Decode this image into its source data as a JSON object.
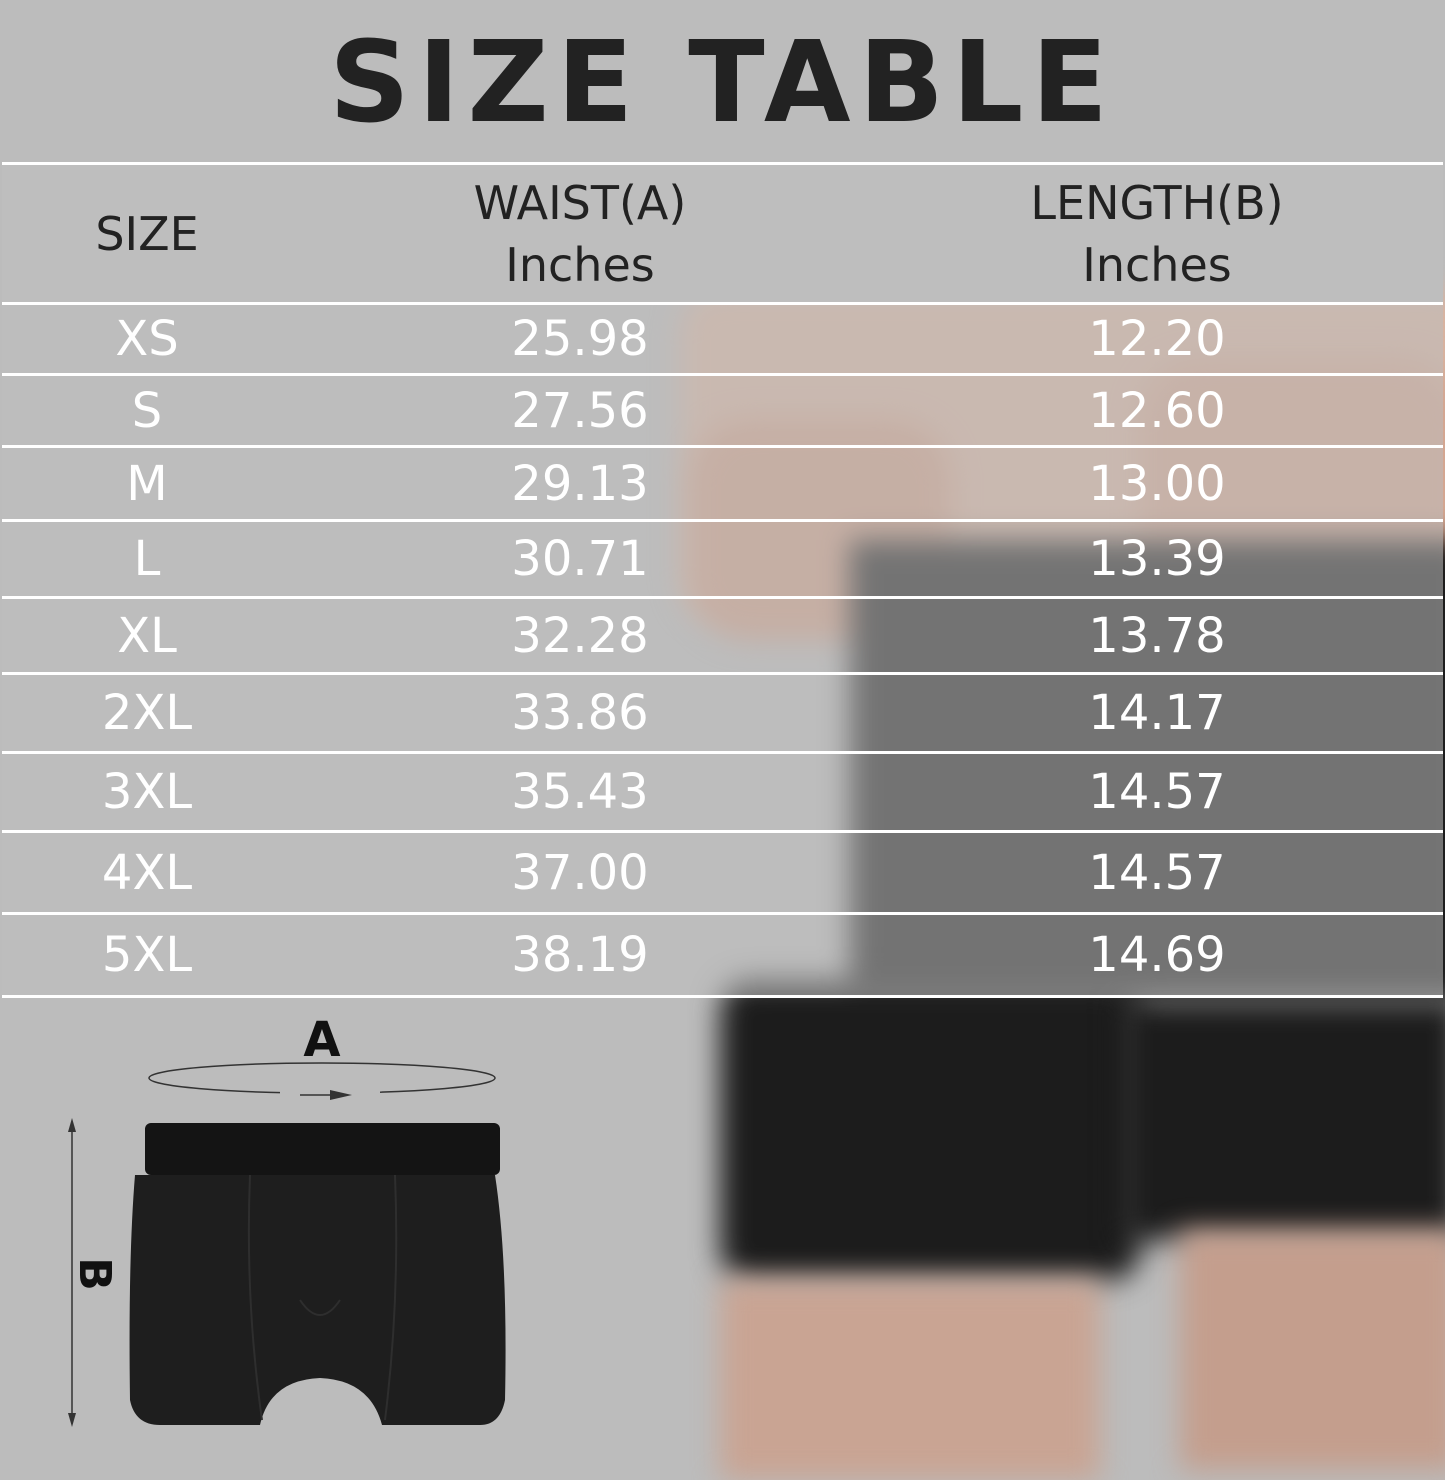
{
  "title": "SIZE TABLE",
  "table": {
    "headers": [
      {
        "line1": "SIZE",
        "line2": ""
      },
      {
        "line1": "WAIST(A)",
        "line2": "Inches"
      },
      {
        "line1": "LENGTH(B)",
        "line2": "Inches"
      }
    ],
    "rows": [
      [
        "XS",
        "25.98",
        "12.20"
      ],
      [
        "S",
        "27.56",
        "12.60"
      ],
      [
        "M",
        "29.13",
        "13.00"
      ],
      [
        "L",
        "30.71",
        "13.39"
      ],
      [
        "XL",
        "32.28",
        "13.78"
      ],
      [
        "2XL",
        "33.86",
        "14.17"
      ],
      [
        "3XL",
        "35.43",
        "14.57"
      ],
      [
        "4XL",
        "37.00",
        "14.57"
      ],
      [
        "5XL",
        "38.19",
        "14.69"
      ]
    ]
  },
  "diagram": {
    "label_a": "A",
    "label_b": "B"
  },
  "colors": {
    "background": "#bcbcbc",
    "text_dark": "#222222",
    "text_light": "#ffffff",
    "garment": "#1c1c1c"
  }
}
